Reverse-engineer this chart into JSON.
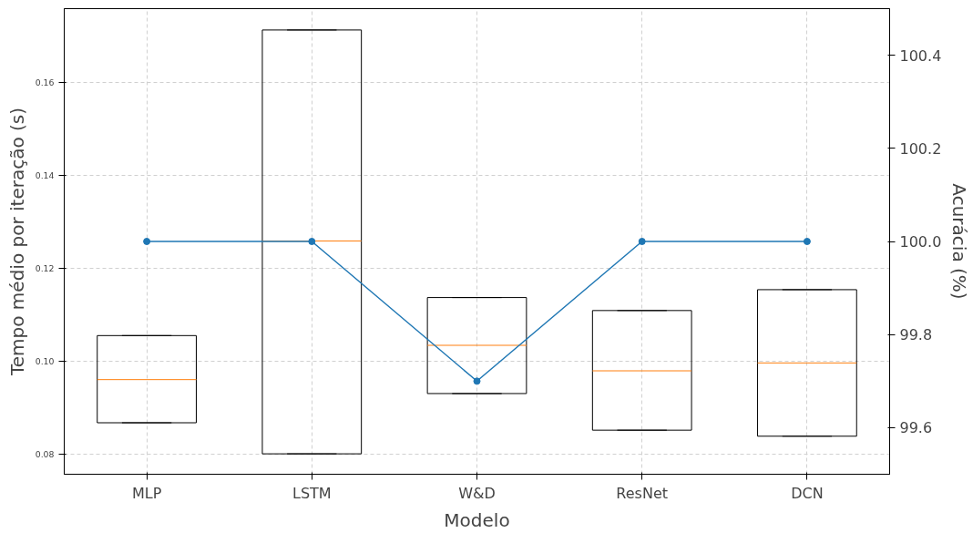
{
  "chart_data": {
    "type": "box",
    "xlabel": "Modelo",
    "ylabel": "Tempo médio por iteração (s)",
    "y2label": "Acurácia (%)",
    "categories": [
      "MLP",
      "LSTM",
      "W&D",
      "ResNet",
      "DCN"
    ],
    "boxes": [
      {
        "low": 0.0867,
        "q1": 0.0867,
        "median": 0.096,
        "q3": 0.1055,
        "high": 0.1055
      },
      {
        "low": 0.08,
        "q1": 0.08,
        "median": 0.1259,
        "q3": 0.1714,
        "high": 0.1714
      },
      {
        "low": 0.093,
        "q1": 0.093,
        "median": 0.1034,
        "q3": 0.1137,
        "high": 0.1137
      },
      {
        "low": 0.0851,
        "q1": 0.0851,
        "median": 0.0979,
        "q3": 0.1109,
        "high": 0.1109
      },
      {
        "low": 0.0838,
        "q1": 0.0838,
        "median": 0.0996,
        "q3": 0.1154,
        "high": 0.1154
      }
    ],
    "series": [
      {
        "type": "line",
        "axis": "y2",
        "color": "#1f77b4",
        "values": [
          100.0,
          100.0,
          99.7,
          100.0,
          100.0
        ]
      }
    ],
    "ylim": [
      0.0756,
      0.176
    ],
    "yticks": [
      0.08,
      {
        "value": 0.1,
        "label": "0.10"
      },
      0.12,
      0.14,
      0.16
    ],
    "y2lim": [
      99.5,
      100.5
    ],
    "y2ticks": [
      99.6,
      99.8,
      {
        "value": 100.0,
        "label": "100.0"
      },
      100.2,
      100.4
    ],
    "grid": true,
    "marker": "circle",
    "line_style": "solid"
  }
}
